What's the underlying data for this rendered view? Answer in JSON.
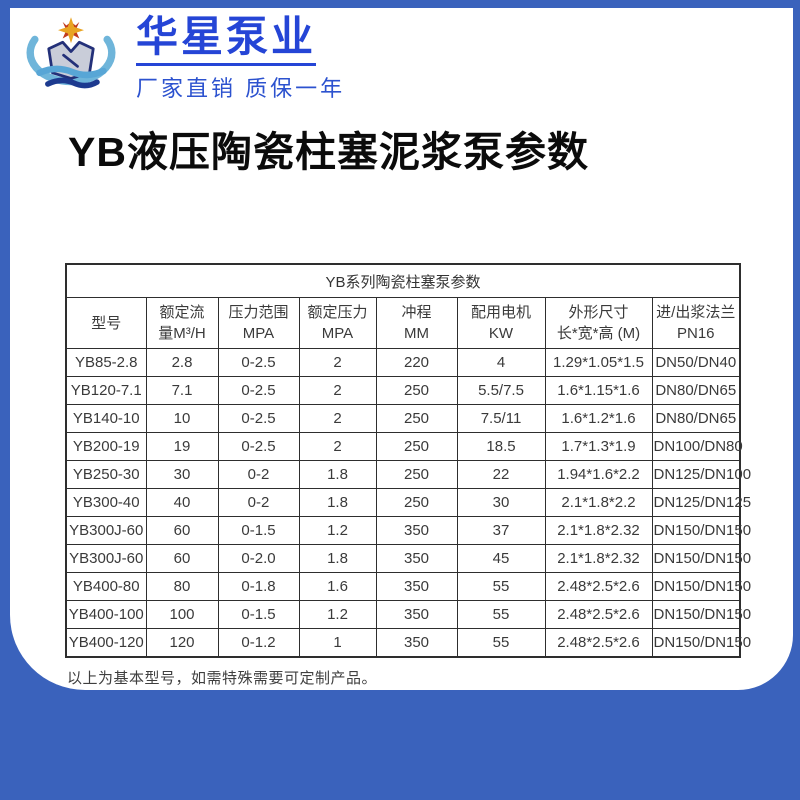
{
  "colors": {
    "page_background": "#3a62bc",
    "card_background": "#ffffff",
    "brand_blue": "#2545d6",
    "table_border": "#2e2e2e",
    "table_text": "#3a3a3a"
  },
  "header": {
    "brand_name": "华星泵业",
    "tagline": "厂家直销 质保一年",
    "logo": "huaxing-pump-logo"
  },
  "title": "YB液压陶瓷柱塞泥浆泵参数",
  "table": {
    "caption": "YB系列陶瓷柱塞泵参数",
    "headers": [
      {
        "line1": "型号",
        "line2": ""
      },
      {
        "line1": "额定流",
        "line2": "量M³/H"
      },
      {
        "line1": "压力范围",
        "line2": "MPA"
      },
      {
        "line1": "额定压力",
        "line2": "MPA"
      },
      {
        "line1": "冲程",
        "line2": "MM"
      },
      {
        "line1": "配用电机",
        "line2": "KW"
      },
      {
        "line1": "外形尺寸",
        "line2": "长*宽*高 (M)"
      },
      {
        "line1": "进/出浆法兰",
        "line2": "PN16"
      }
    ],
    "rows": [
      [
        "YB85-2.8",
        "2.8",
        "0-2.5",
        "2",
        "220",
        "4",
        "1.29*1.05*1.5",
        "DN50/DN40"
      ],
      [
        "YB120-7.1",
        "7.1",
        "0-2.5",
        "2",
        "250",
        "5.5/7.5",
        "1.6*1.15*1.6",
        "DN80/DN65"
      ],
      [
        "YB140-10",
        "10",
        "0-2.5",
        "2",
        "250",
        "7.5/11",
        "1.6*1.2*1.6",
        "DN80/DN65"
      ],
      [
        "YB200-19",
        "19",
        "0-2.5",
        "2",
        "250",
        "18.5",
        "1.7*1.3*1.9",
        "DN100/DN80"
      ],
      [
        "YB250-30",
        "30",
        "0-2",
        "1.8",
        "250",
        "22",
        "1.94*1.6*2.2",
        "DN125/DN100"
      ],
      [
        "YB300-40",
        "40",
        "0-2",
        "1.8",
        "250",
        "30",
        "2.1*1.8*2.2",
        "DN125/DN125"
      ],
      [
        "YB300J-60",
        "60",
        "0-1.5",
        "1.2",
        "350",
        "37",
        "2.1*1.8*2.32",
        "DN150/DN150"
      ],
      [
        "YB300J-60",
        "60",
        "0-2.0",
        "1.8",
        "350",
        "45",
        "2.1*1.8*2.32",
        "DN150/DN150"
      ],
      [
        "YB400-80",
        "80",
        "0-1.8",
        "1.6",
        "350",
        "55",
        "2.48*2.5*2.6",
        "DN150/DN150"
      ],
      [
        "YB400-100",
        "100",
        "0-1.5",
        "1.2",
        "350",
        "55",
        "2.48*2.5*2.6",
        "DN150/DN150"
      ],
      [
        "YB400-120",
        "120",
        "0-1.2",
        "1",
        "350",
        "55",
        "2.48*2.5*2.6",
        "DN150/DN150"
      ]
    ]
  },
  "footnote": "以上为基本型号，如需特殊需要可定制产品。"
}
